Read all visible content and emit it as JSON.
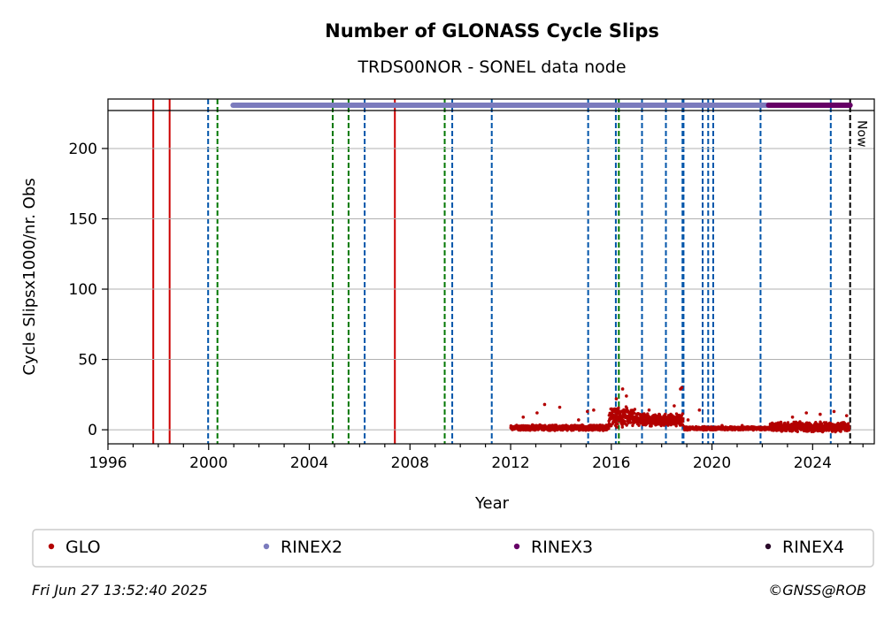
{
  "chart_data": {
    "type": "scatter",
    "title": "Number of GLONASS Cycle Slips",
    "subtitle": "TRDS00NOR - SONEL data node",
    "xlabel": "Year",
    "ylabel": "Cycle Slipsx1000/nr. Obs",
    "xlim": [
      1996.0,
      2026.45
    ],
    "ylim": [
      -10,
      227
    ],
    "x_ticks": [
      1996,
      2000,
      2004,
      2008,
      2012,
      2016,
      2020,
      2024
    ],
    "y_ticks": [
      0,
      50,
      100,
      150,
      200
    ],
    "grid": "horizontal",
    "now_label": "Now",
    "now_x": 2025.49,
    "legend": {
      "placement": "bottom",
      "entries": [
        {
          "name": "GLO",
          "color": "#b30000"
        },
        {
          "name": "RINEX2",
          "color": "#7b7bbd"
        },
        {
          "name": "RINEX3",
          "color": "#660066"
        },
        {
          "name": "RINEX4",
          "color": "#2a0a2a"
        }
      ]
    },
    "vlines_red_solid": [
      1997.8,
      1998.45,
      2007.4
    ],
    "vlines_blue_dashed": [
      1999.98,
      2006.2,
      2009.68,
      2011.25,
      2015.08,
      2016.18,
      2017.22,
      2018.17,
      2018.83,
      2018.87,
      2019.63,
      2019.85,
      2020.05,
      2021.93,
      2024.72
    ],
    "vlines_green_dashed": [
      2000.35,
      2004.93,
      2005.56,
      2009.38,
      2016.3
    ],
    "rinex2_bar": [
      2000.97,
      2022.25
    ],
    "rinex3_bar": [
      2022.25,
      2025.49
    ],
    "glo_segments": [
      {
        "x_start": 2012.0,
        "x_end": 2015.9,
        "y_base": 1.5,
        "y_spread": 4,
        "outliers": [
          [
            2012.5,
            9
          ],
          [
            2013.05,
            12
          ],
          [
            2013.35,
            18
          ],
          [
            2013.95,
            16
          ],
          [
            2014.7,
            7
          ],
          [
            2015.05,
            13
          ],
          [
            2015.3,
            14
          ]
        ]
      },
      {
        "x_start": 2015.9,
        "x_end": 2016.95,
        "y_base": 9,
        "y_spread": 14,
        "outliers": [
          [
            2016.45,
            29
          ],
          [
            2016.6,
            24
          ],
          [
            2016.2,
            22
          ]
        ]
      },
      {
        "x_start": 2016.95,
        "x_end": 2018.85,
        "y_base": 7,
        "y_spread": 9,
        "outliers": [
          [
            2018.75,
            29
          ],
          [
            2018.8,
            30
          ],
          [
            2017.5,
            14
          ],
          [
            2018.5,
            17
          ]
        ]
      },
      {
        "x_start": 2018.9,
        "x_end": 2022.3,
        "y_base": 1.0,
        "y_spread": 2.5,
        "outliers": [
          [
            2019.5,
            14
          ],
          [
            2019.05,
            7
          ],
          [
            2020.4,
            3
          ],
          [
            2021.2,
            3
          ]
        ]
      },
      {
        "x_start": 2022.3,
        "x_end": 2025.45,
        "y_base": 2,
        "y_spread": 7,
        "outliers": [
          [
            2023.75,
            12
          ],
          [
            2024.3,
            11
          ],
          [
            2024.85,
            13
          ],
          [
            2025.35,
            10
          ],
          [
            2023.2,
            9
          ]
        ]
      }
    ]
  },
  "footer": {
    "timestamp": "Fri Jun 27 13:52:40 2025",
    "copyright": "©GNSS@ROB"
  }
}
